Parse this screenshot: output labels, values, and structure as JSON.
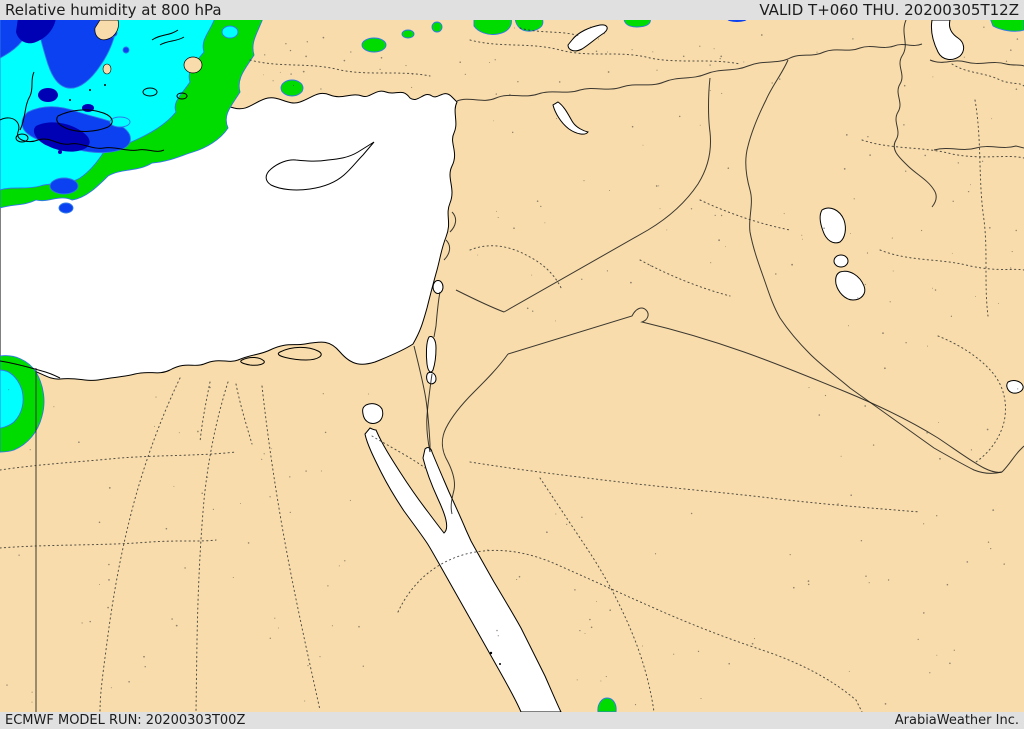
{
  "header": {
    "title": "Relative humidity at 800 hPa",
    "valid_label": "VALID T+060 THU. 20200305T12Z"
  },
  "footer": {
    "model_run_label": "ECMWF MODEL RUN: 20200303T00Z",
    "credit": "ArabiaWeather Inc."
  },
  "map": {
    "parameter": "Relative humidity",
    "level": "800 hPa",
    "model": "ECMWF",
    "region": "Eastern Mediterranean / Middle East"
  },
  "colors": {
    "bar_bg": "#e0e0e0",
    "bar_text": "#1c1c1c",
    "land": "#f8dcab",
    "water": "#ffffff",
    "coast": "#000000",
    "contour_line": "#2f79e8",
    "rh_fill_levels": [
      {
        "name": "green",
        "hex": "#00dc00"
      },
      {
        "name": "cyan",
        "hex": "#00ffff"
      },
      {
        "name": "blue",
        "hex": "#0b41f0"
      },
      {
        "name": "navy",
        "hex": "#0000b4"
      }
    ]
  }
}
